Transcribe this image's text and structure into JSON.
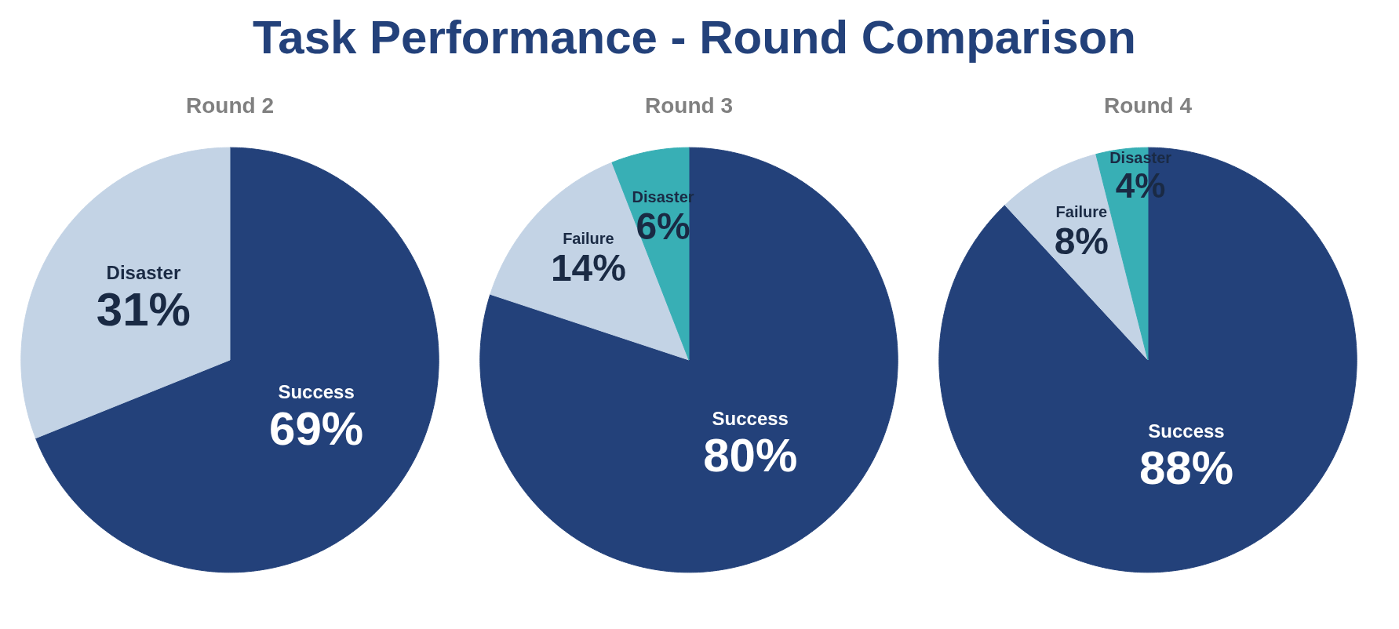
{
  "chart_data": [
    {
      "type": "pie",
      "title": "Task Performance - Round Comparison",
      "subtitle": "Round 2",
      "categories": [
        "Success",
        "Disaster"
      ],
      "values": [
        69,
        31
      ],
      "value_labels": [
        "69%",
        "31%"
      ],
      "colors": [
        "#23417a",
        "#c3d3e5"
      ],
      "data_labels": true
    },
    {
      "type": "pie",
      "subtitle": "Round 3",
      "categories": [
        "Success",
        "Failure",
        "Disaster"
      ],
      "values": [
        80,
        14,
        6
      ],
      "value_labels": [
        "80%",
        "14%",
        "6%"
      ],
      "colors": [
        "#23417a",
        "#c3d3e5",
        "#38afb5"
      ],
      "data_labels": true
    },
    {
      "type": "pie",
      "subtitle": "Round 4",
      "categories": [
        "Success",
        "Failure",
        "Disaster"
      ],
      "values": [
        88,
        8,
        4
      ],
      "value_labels": [
        "88%",
        "8%",
        "4%"
      ],
      "colors": [
        "#23417a",
        "#c3d3e5",
        "#38afb5"
      ],
      "data_labels": true
    }
  ]
}
